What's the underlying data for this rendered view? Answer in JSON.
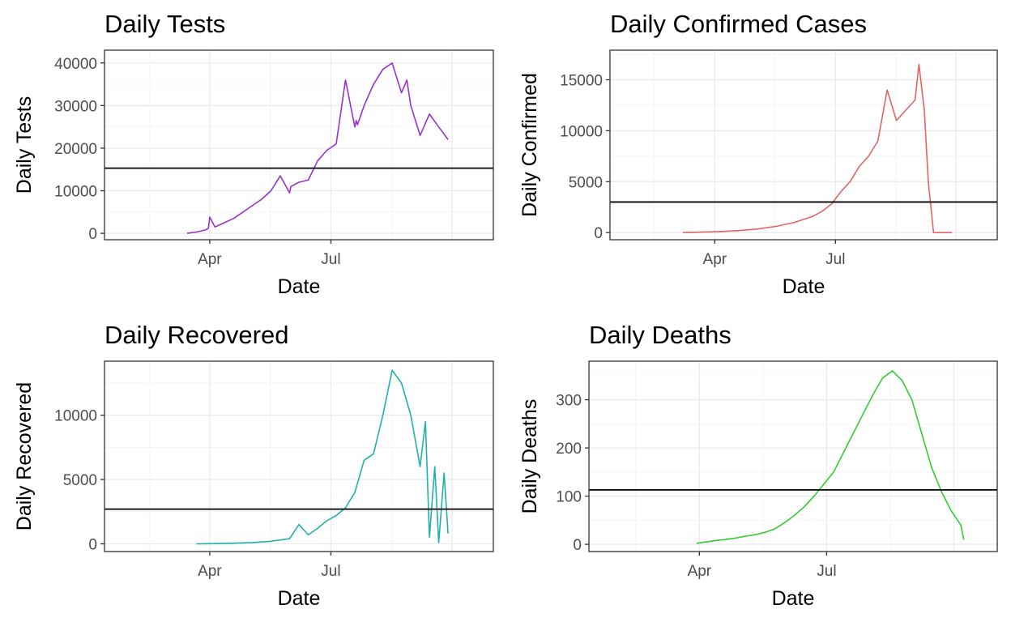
{
  "chart_data": [
    {
      "type": "line",
      "title": "Daily Tests",
      "xlabel": "Date",
      "ylabel": "Daily Tests",
      "color": "#9932CC",
      "ylim": [
        -1500,
        43000
      ],
      "yticks": [
        0,
        10000,
        20000,
        30000,
        40000
      ],
      "yticklabels": [
        "0",
        "10000",
        "20000",
        "30000",
        "40000"
      ],
      "xlim": [
        "2020-01-13",
        "2020-10-31"
      ],
      "xticks": [
        "2020-04-01",
        "2020-07-01"
      ],
      "xticklabels": [
        "Apr",
        "Jul"
      ],
      "hline": 15300,
      "grid": true,
      "series": [
        {
          "x": [
            "2020-03-15",
            "2020-03-22",
            "2020-03-29",
            "2020-03-31",
            "2020-04-01",
            "2020-04-05",
            "2020-04-12",
            "2020-04-19",
            "2020-04-26",
            "2020-05-03",
            "2020-05-10",
            "2020-05-17",
            "2020-05-24",
            "2020-05-31",
            "2020-06-01",
            "2020-06-07",
            "2020-06-14",
            "2020-06-21",
            "2020-06-28",
            "2020-07-05",
            "2020-07-12",
            "2020-07-19",
            "2020-07-20",
            "2020-07-21",
            "2020-07-26",
            "2020-08-02",
            "2020-08-09",
            "2020-08-16",
            "2020-08-23",
            "2020-08-27",
            "2020-08-30",
            "2020-09-06",
            "2020-09-13",
            "2020-09-20",
            "2020-09-27"
          ],
          "y": [
            0,
            300,
            800,
            1200,
            3800,
            1500,
            2500,
            3500,
            5000,
            6500,
            8000,
            10000,
            13500,
            9500,
            11000,
            12000,
            12500,
            17000,
            19500,
            21000,
            36000,
            25000,
            26500,
            25500,
            30000,
            35000,
            38500,
            40000,
            33000,
            36000,
            30000,
            23000,
            28000,
            25000,
            22000
          ]
        }
      ]
    },
    {
      "type": "line",
      "title": "Daily Confirmed Cases",
      "xlabel": "Date",
      "ylabel": "Daily Confirmed",
      "color": "#E06666",
      "ylim": [
        -700,
        17900
      ],
      "yticks": [
        0,
        5000,
        10000,
        15000
      ],
      "yticklabels": [
        "0",
        "5000",
        "10000",
        "15000"
      ],
      "xlim": [
        "2020-01-13",
        "2020-10-31"
      ],
      "xticks": [
        "2020-04-01",
        "2020-07-01"
      ],
      "xticklabels": [
        "Apr",
        "Jul"
      ],
      "hline": 3000,
      "grid": true,
      "series": [
        {
          "x": [
            "2020-03-08",
            "2020-03-22",
            "2020-04-05",
            "2020-04-19",
            "2020-05-03",
            "2020-05-17",
            "2020-05-31",
            "2020-06-14",
            "2020-06-21",
            "2020-06-28",
            "2020-07-05",
            "2020-07-12",
            "2020-07-19",
            "2020-07-26",
            "2020-08-02",
            "2020-08-09",
            "2020-08-16",
            "2020-08-23",
            "2020-08-30",
            "2020-09-02",
            "2020-09-06",
            "2020-09-09",
            "2020-09-13",
            "2020-09-20",
            "2020-09-27"
          ],
          "y": [
            0,
            50,
            100,
            200,
            350,
            600,
            1000,
            1600,
            2100,
            2800,
            4000,
            5000,
            6500,
            7500,
            9000,
            14000,
            11000,
            12000,
            13000,
            16500,
            12000,
            5000,
            0,
            0,
            0
          ]
        }
      ]
    },
    {
      "type": "line",
      "title": "Daily Recovered",
      "xlabel": "Date",
      "ylabel": "Daily Recovered",
      "color": "#20B2AA",
      "ylim": [
        -600,
        14200
      ],
      "yticks": [
        0,
        5000,
        10000
      ],
      "yticklabels": [
        "0",
        "5000",
        "10000"
      ],
      "xlim": [
        "2020-01-13",
        "2020-10-31"
      ],
      "xticks": [
        "2020-04-01",
        "2020-07-01"
      ],
      "xticklabels": [
        "Apr",
        "Jul"
      ],
      "hline": 2700,
      "grid": true,
      "series": [
        {
          "x": [
            "2020-03-22",
            "2020-04-05",
            "2020-04-19",
            "2020-05-03",
            "2020-05-17",
            "2020-05-31",
            "2020-06-07",
            "2020-06-14",
            "2020-06-21",
            "2020-06-28",
            "2020-07-05",
            "2020-07-12",
            "2020-07-19",
            "2020-07-26",
            "2020-08-02",
            "2020-08-09",
            "2020-08-16",
            "2020-08-23",
            "2020-08-30",
            "2020-09-06",
            "2020-09-10",
            "2020-09-13",
            "2020-09-17",
            "2020-09-20",
            "2020-09-24",
            "2020-09-27"
          ],
          "y": [
            0,
            20,
            50,
            100,
            200,
            400,
            1500,
            700,
            1200,
            1800,
            2200,
            2800,
            4000,
            6500,
            7000,
            10000,
            13500,
            12500,
            10000,
            6000,
            9500,
            500,
            6000,
            100,
            5500,
            800
          ]
        }
      ]
    },
    {
      "type": "line",
      "title": "Daily Deaths",
      "xlabel": "Date",
      "ylabel": "Daily Deaths",
      "color": "#33CC33",
      "ylim": [
        -15,
        380
      ],
      "yticks": [
        0,
        100,
        200,
        300
      ],
      "yticklabels": [
        "0",
        "100",
        "200",
        "300"
      ],
      "xlim": [
        "2020-01-13",
        "2020-10-31"
      ],
      "xticks": [
        "2020-04-01",
        "2020-07-01"
      ],
      "xticklabels": [
        "Apr",
        "Jul"
      ],
      "hline": 113,
      "grid": true,
      "series": [
        {
          "x": [
            "2020-03-30",
            "2020-04-06",
            "2020-04-13",
            "2020-04-20",
            "2020-04-27",
            "2020-05-04",
            "2020-05-11",
            "2020-05-18",
            "2020-05-25",
            "2020-06-01",
            "2020-06-08",
            "2020-06-15",
            "2020-06-22",
            "2020-06-29",
            "2020-07-06",
            "2020-07-13",
            "2020-07-20",
            "2020-07-27",
            "2020-08-03",
            "2020-08-10",
            "2020-08-17",
            "2020-08-24",
            "2020-08-31",
            "2020-09-07",
            "2020-09-14",
            "2020-09-21",
            "2020-09-28",
            "2020-10-05",
            "2020-10-07"
          ],
          "y": [
            2,
            5,
            8,
            10,
            13,
            17,
            20,
            25,
            32,
            45,
            60,
            78,
            100,
            125,
            150,
            190,
            230,
            270,
            310,
            345,
            360,
            340,
            300,
            230,
            160,
            110,
            70,
            40,
            10
          ]
        }
      ]
    }
  ]
}
